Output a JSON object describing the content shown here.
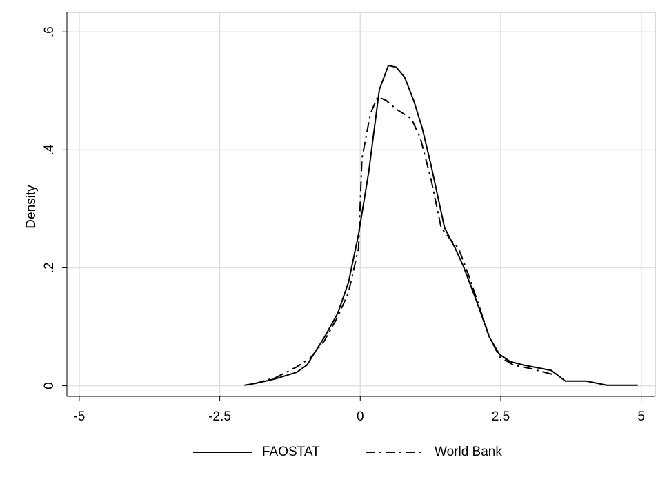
{
  "chart_data": {
    "type": "line",
    "ylabel": "Density",
    "xlim": [
      -5.22,
      5.25
    ],
    "ylim": [
      -0.018,
      0.633
    ],
    "xticks": [
      -5,
      -2.5,
      0,
      2.5,
      5
    ],
    "yticks": [
      0,
      {
        "value": 0.2,
        "label": ".2"
      },
      {
        "value": 0.4,
        "label": ".4"
      },
      {
        "value": 0.6,
        "label": ".6"
      }
    ],
    "grid": true,
    "legend": "bottom",
    "series": [
      {
        "name": "FAOSTAT",
        "color": "#000000",
        "linestyle": "solid",
        "x": [
          -2.06,
          -1.87,
          -1.5,
          -1.13,
          -0.95,
          -0.64,
          -0.4,
          -0.21,
          -0.03,
          0.15,
          0.34,
          0.5,
          0.64,
          0.79,
          0.95,
          1.1,
          1.26,
          1.5,
          1.69,
          1.83,
          2.06,
          2.3,
          2.48,
          2.67,
          2.91,
          3.4,
          3.65,
          4.02,
          4.39,
          4.94
        ],
        "values": [
          0.001,
          0.004,
          0.012,
          0.023,
          0.035,
          0.082,
          0.123,
          0.175,
          0.257,
          0.362,
          0.502,
          0.543,
          0.54,
          0.523,
          0.484,
          0.438,
          0.374,
          0.268,
          0.233,
          0.204,
          0.146,
          0.082,
          0.053,
          0.041,
          0.035,
          0.026,
          0.008,
          0.008,
          0.001,
          0.001
        ]
      },
      {
        "name": "World Bank",
        "color": "#000000",
        "linestyle": "dashdot",
        "x": [
          -1.87,
          -1.5,
          -1.13,
          -0.89,
          -0.64,
          -0.4,
          -0.21,
          -0.03,
          0.03,
          0.18,
          0.31,
          0.46,
          0.64,
          0.91,
          1.07,
          1.26,
          1.44,
          1.63,
          1.75,
          1.93,
          2.12,
          2.3,
          2.48,
          2.73,
          3.04,
          3.47
        ],
        "values": [
          0.004,
          0.014,
          0.032,
          0.047,
          0.076,
          0.117,
          0.158,
          0.233,
          0.385,
          0.461,
          0.49,
          0.484,
          0.469,
          0.453,
          0.42,
          0.35,
          0.268,
          0.245,
          0.233,
          0.187,
          0.134,
          0.082,
          0.049,
          0.035,
          0.029,
          0.018
        ]
      }
    ]
  }
}
